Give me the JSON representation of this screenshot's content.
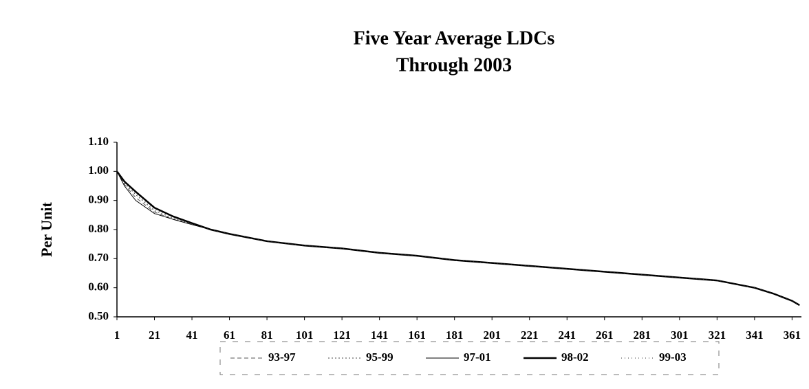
{
  "chart_data": {
    "type": "line",
    "title": "Five Year Average LDCs",
    "subtitle": "Through 2003",
    "y_label": "Per Unit",
    "x": [
      1,
      5,
      11,
      21,
      31,
      41,
      51,
      61,
      81,
      101,
      121,
      141,
      161,
      181,
      201,
      221,
      241,
      261,
      281,
      301,
      321,
      341,
      351,
      361,
      365
    ],
    "series": [
      {
        "name": "93-97",
        "color": "#555555",
        "dash": "6,4",
        "line_width": 1,
        "values": [
          1.0,
          0.955,
          0.91,
          0.86,
          0.835,
          0.818,
          0.8,
          0.785,
          0.76,
          0.745,
          0.735,
          0.72,
          0.71,
          0.695,
          0.685,
          0.675,
          0.665,
          0.655,
          0.645,
          0.635,
          0.625,
          0.6,
          0.58,
          0.555,
          0.54
        ]
      },
      {
        "name": "95-99",
        "color": "#444444",
        "dash": "2,3",
        "line_width": 1,
        "values": [
          1.0,
          0.96,
          0.92,
          0.865,
          0.838,
          0.819,
          0.8,
          0.785,
          0.76,
          0.745,
          0.735,
          0.72,
          0.71,
          0.695,
          0.685,
          0.675,
          0.665,
          0.655,
          0.645,
          0.635,
          0.625,
          0.6,
          0.58,
          0.555,
          0.54
        ]
      },
      {
        "name": "97-01",
        "color": "#000000",
        "dash": "",
        "line_width": 1,
        "values": [
          1.0,
          0.95,
          0.9,
          0.855,
          0.835,
          0.817,
          0.8,
          0.785,
          0.76,
          0.745,
          0.735,
          0.72,
          0.71,
          0.695,
          0.685,
          0.675,
          0.665,
          0.655,
          0.645,
          0.635,
          0.625,
          0.6,
          0.58,
          0.555,
          0.54
        ]
      },
      {
        "name": "98-02",
        "color": "#000000",
        "dash": "",
        "line_width": 2.5,
        "values": [
          1.0,
          0.965,
          0.93,
          0.875,
          0.845,
          0.822,
          0.8,
          0.785,
          0.76,
          0.745,
          0.735,
          0.72,
          0.71,
          0.695,
          0.685,
          0.675,
          0.665,
          0.655,
          0.645,
          0.635,
          0.625,
          0.6,
          0.58,
          0.555,
          0.54
        ]
      },
      {
        "name": "99-03",
        "color": "#333333",
        "dash": "1,4",
        "line_width": 1,
        "values": [
          1.0,
          0.962,
          0.925,
          0.87,
          0.842,
          0.82,
          0.8,
          0.785,
          0.76,
          0.745,
          0.735,
          0.72,
          0.71,
          0.695,
          0.685,
          0.675,
          0.665,
          0.655,
          0.645,
          0.635,
          0.625,
          0.6,
          0.58,
          0.555,
          0.54
        ]
      }
    ],
    "xlim": [
      1,
      366
    ],
    "xticks": [
      1,
      21,
      41,
      61,
      81,
      101,
      121,
      141,
      161,
      181,
      201,
      221,
      241,
      261,
      281,
      301,
      321,
      341,
      361
    ],
    "ylim": [
      0.5,
      1.1
    ],
    "yticks": [
      {
        "value": 0.5,
        "label": "0.50"
      },
      {
        "value": 0.6,
        "label": "0.60"
      },
      {
        "value": 0.7,
        "label": "0.70"
      },
      {
        "value": 0.8,
        "label": "0.80"
      },
      {
        "value": 0.9,
        "label": "0.90"
      },
      {
        "value": 1.0,
        "label": "1.00"
      },
      {
        "value": 1.1,
        "label": "1.10"
      }
    ],
    "grid": false,
    "legend": "bottom"
  }
}
